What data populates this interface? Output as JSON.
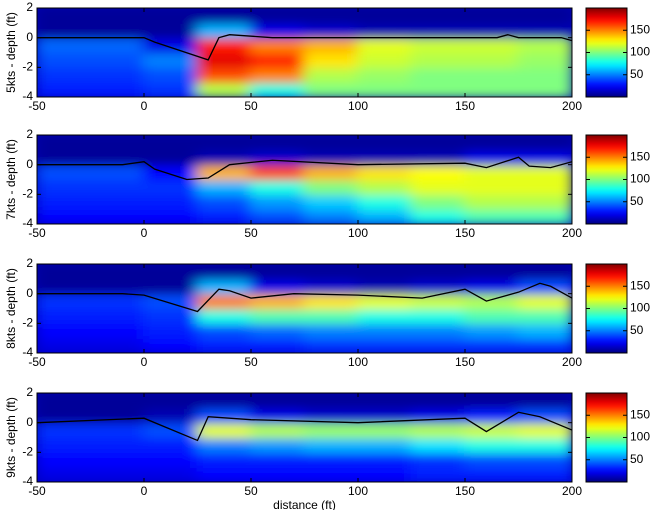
{
  "chart_data": [
    {
      "type": "heatmap",
      "ylabel": "5kts - depth (ft)",
      "xlim": [
        -50,
        200
      ],
      "xticks": [
        -50,
        0,
        50,
        100,
        150,
        200
      ],
      "ylim": [
        -4,
        2
      ],
      "yticks": [
        -4,
        -2,
        0,
        2
      ],
      "xbins": [
        -50,
        -25,
        0,
        25,
        50,
        75,
        100,
        125,
        150,
        175,
        200
      ],
      "ybins": [
        -4,
        -3,
        -2,
        -1,
        0,
        1,
        2
      ],
      "z": [
        [
          30,
          30,
          35,
          110,
          80,
          100,
          100,
          100,
          100,
          100
        ],
        [
          35,
          35,
          40,
          160,
          150,
          110,
          105,
          100,
          100,
          100
        ],
        [
          40,
          40,
          50,
          180,
          170,
          130,
          115,
          110,
          110,
          105
        ],
        [
          45,
          45,
          20,
          170,
          150,
          140,
          120,
          115,
          115,
          110
        ],
        [
          5,
          5,
          5,
          60,
          20,
          15,
          10,
          10,
          10,
          10
        ],
        [
          5,
          5,
          5,
          5,
          5,
          5,
          5,
          5,
          5,
          5
        ]
      ],
      "clim": [
        0,
        200
      ],
      "cticks": [
        50,
        100,
        150
      ],
      "surface": {
        "x": [
          -50,
          -10,
          0,
          5,
          30,
          35,
          40,
          60,
          100,
          150,
          165,
          170,
          175,
          195,
          200
        ],
        "y": [
          0,
          0,
          0,
          -0.3,
          -1.5,
          0,
          0.2,
          0,
          0,
          0,
          0,
          0.2,
          0,
          0,
          -0.2
        ]
      }
    },
    {
      "type": "heatmap",
      "ylabel": "7kts - depth (ft)",
      "xlim": [
        -50,
        200
      ],
      "xticks": [
        -50,
        0,
        50,
        100,
        150,
        200
      ],
      "ylim": [
        -4,
        2
      ],
      "yticks": [
        -4,
        -2,
        0,
        2
      ],
      "xbins": [
        -50,
        -25,
        0,
        25,
        50,
        75,
        100,
        125,
        150,
        175,
        200
      ],
      "ybins": [
        -4,
        -3,
        -2,
        -1,
        0,
        1,
        2
      ],
      "z": [
        [
          25,
          25,
          25,
          30,
          40,
          50,
          60,
          80,
          90,
          90
        ],
        [
          30,
          30,
          30,
          40,
          55,
          65,
          80,
          100,
          110,
          110
        ],
        [
          35,
          35,
          35,
          60,
          80,
          100,
          110,
          120,
          120,
          120
        ],
        [
          40,
          40,
          25,
          140,
          160,
          140,
          130,
          125,
          120,
          120
        ],
        [
          5,
          5,
          5,
          10,
          15,
          10,
          10,
          10,
          20,
          20
        ],
        [
          5,
          5,
          5,
          5,
          5,
          5,
          5,
          5,
          5,
          5
        ]
      ],
      "clim": [
        0,
        200
      ],
      "cticks": [
        50,
        100,
        150
      ],
      "surface": {
        "x": [
          -50,
          -10,
          0,
          5,
          20,
          30,
          40,
          60,
          100,
          150,
          160,
          175,
          180,
          190,
          200
        ],
        "y": [
          0,
          0,
          0.2,
          -0.3,
          -1,
          -0.9,
          0,
          0.3,
          0,
          0.1,
          -0.2,
          0.5,
          -0.1,
          -0.2,
          0.2
        ]
      }
    },
    {
      "type": "heatmap",
      "ylabel": "8kts - depth (ft)",
      "xlim": [
        -50,
        200
      ],
      "xticks": [
        -50,
        0,
        50,
        100,
        150,
        200
      ],
      "ylim": [
        -4,
        2
      ],
      "yticks": [
        -4,
        -2,
        0,
        2
      ],
      "xbins": [
        -50,
        -25,
        0,
        25,
        50,
        75,
        100,
        125,
        150,
        175,
        200
      ],
      "ybins": [
        -4,
        -3,
        -2,
        -1,
        0,
        1,
        2
      ],
      "z": [
        [
          20,
          20,
          25,
          30,
          30,
          35,
          35,
          35,
          35,
          35
        ],
        [
          25,
          25,
          30,
          40,
          45,
          50,
          50,
          50,
          55,
          60
        ],
        [
          30,
          30,
          35,
          80,
          90,
          90,
          80,
          80,
          90,
          90
        ],
        [
          35,
          35,
          40,
          150,
          140,
          130,
          120,
          115,
          110,
          120
        ],
        [
          5,
          5,
          5,
          60,
          20,
          15,
          10,
          15,
          20,
          40
        ],
        [
          5,
          5,
          5,
          5,
          5,
          5,
          5,
          5,
          5,
          5
        ]
      ],
      "clim": [
        0,
        200
      ],
      "cticks": [
        50,
        100,
        150
      ],
      "surface": {
        "x": [
          -50,
          -10,
          0,
          25,
          35,
          40,
          50,
          70,
          100,
          130,
          150,
          160,
          175,
          185,
          190,
          200
        ],
        "y": [
          0,
          0,
          -0.1,
          -1.2,
          0.3,
          0.2,
          -0.3,
          0,
          -0.1,
          -0.3,
          0.3,
          -0.5,
          0.1,
          0.7,
          0.5,
          -0.3
        ]
      }
    },
    {
      "type": "heatmap",
      "ylabel": "9kts - depth (ft)",
      "xlabel": "distance (ft)",
      "xlim": [
        -50,
        200
      ],
      "xticks": [
        -50,
        0,
        50,
        100,
        150,
        200
      ],
      "ylim": [
        -4,
        2
      ],
      "yticks": [
        -4,
        -2,
        0,
        2
      ],
      "xbins": [
        -50,
        -25,
        0,
        25,
        50,
        75,
        100,
        125,
        150,
        175,
        200
      ],
      "ybins": [
        -4,
        -3,
        -2,
        -1,
        0,
        1,
        2
      ],
      "z": [
        [
          20,
          20,
          20,
          25,
          25,
          25,
          25,
          30,
          30,
          30
        ],
        [
          25,
          25,
          25,
          30,
          30,
          30,
          30,
          35,
          40,
          40
        ],
        [
          30,
          30,
          30,
          50,
          55,
          60,
          60,
          70,
          80,
          80
        ],
        [
          35,
          35,
          40,
          120,
          110,
          105,
          105,
          110,
          115,
          120
        ],
        [
          5,
          5,
          10,
          40,
          20,
          15,
          15,
          20,
          30,
          40
        ],
        [
          5,
          5,
          5,
          5,
          5,
          5,
          5,
          5,
          5,
          5
        ]
      ],
      "clim": [
        0,
        200
      ],
      "cticks": [
        50,
        100,
        150
      ],
      "surface": {
        "x": [
          -50,
          0,
          10,
          25,
          30,
          50,
          100,
          150,
          160,
          175,
          185,
          200
        ],
        "y": [
          0,
          0.3,
          -0.3,
          -1.2,
          0.4,
          0.2,
          0,
          0.3,
          -0.6,
          0.7,
          0.4,
          -0.5
        ]
      }
    }
  ]
}
